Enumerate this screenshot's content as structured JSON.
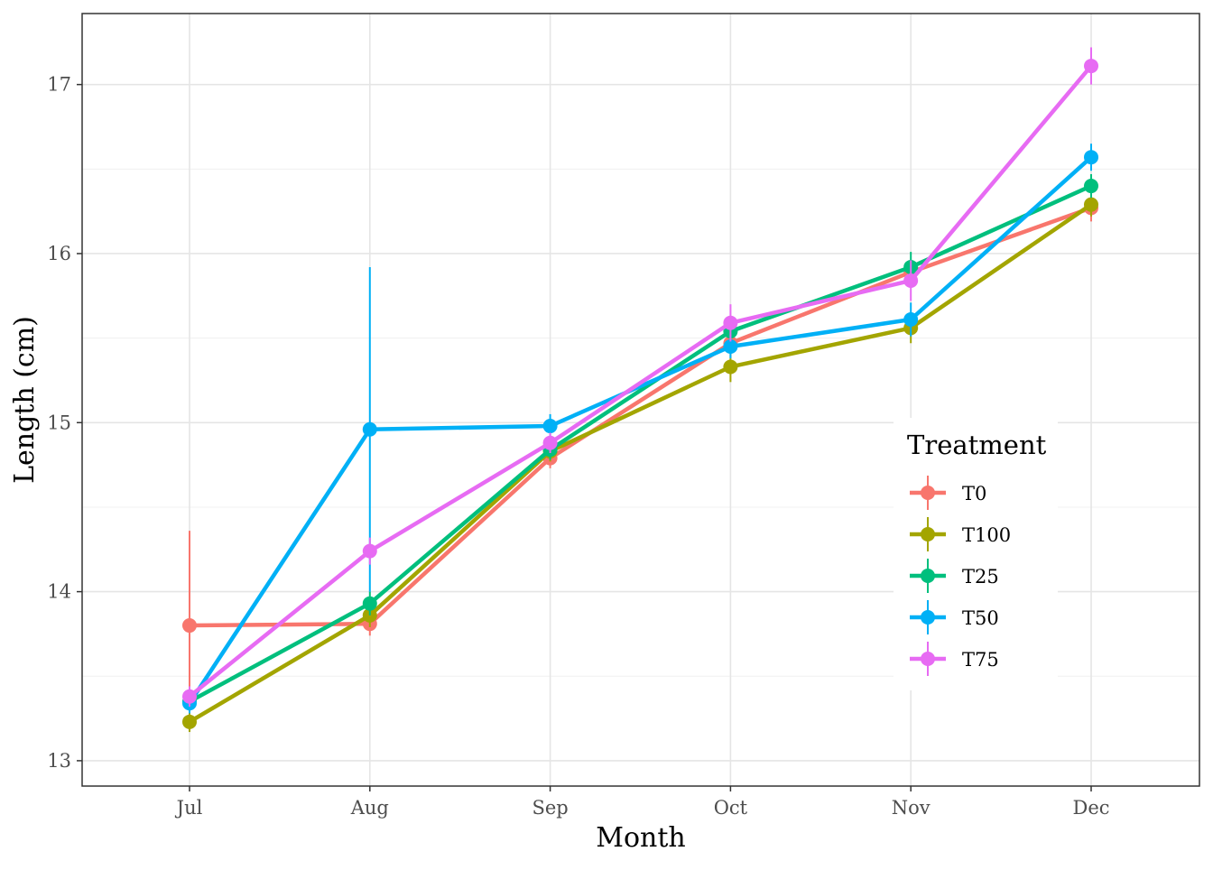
{
  "chart_data": {
    "type": "line",
    "xlabel": "Month",
    "ylabel": "Length (cm)",
    "categories": [
      "Jul",
      "Aug",
      "Sep",
      "Oct",
      "Nov",
      "Dec"
    ],
    "ylim": [
      12.85,
      17.42
    ],
    "yticks": [
      13,
      14,
      15,
      16,
      17
    ],
    "grid": true,
    "error_bars": true,
    "legend": {
      "title": "Treatment",
      "placement": "inside-right"
    },
    "series": [
      {
        "name": "T0",
        "color": "#F8766D",
        "values": [
          13.8,
          13.81,
          14.79,
          15.47,
          15.89,
          16.27
        ],
        "err_low": [
          13.25,
          13.74,
          14.73,
          15.41,
          15.83,
          16.19
        ],
        "err_high": [
          14.36,
          13.88,
          14.85,
          15.53,
          15.95,
          16.35
        ]
      },
      {
        "name": "T100",
        "color": "#A3A500",
        "values": [
          13.23,
          13.86,
          14.83,
          15.33,
          15.56,
          16.29
        ],
        "err_low": [
          13.17,
          13.79,
          14.77,
          15.24,
          15.47,
          16.22
        ],
        "err_high": [
          13.29,
          13.93,
          14.89,
          15.42,
          15.65,
          16.36
        ]
      },
      {
        "name": "T25",
        "color": "#00BF7D",
        "values": [
          13.35,
          13.93,
          14.84,
          15.54,
          15.92,
          16.4
        ],
        "err_low": [
          13.29,
          13.86,
          14.78,
          15.47,
          15.83,
          16.33
        ],
        "err_high": [
          13.41,
          14.0,
          14.9,
          15.61,
          16.01,
          16.47
        ]
      },
      {
        "name": "T50",
        "color": "#00B0F6",
        "values": [
          13.34,
          14.96,
          14.98,
          15.45,
          15.61,
          16.57
        ],
        "err_low": [
          13.28,
          14.0,
          14.91,
          15.38,
          15.51,
          16.49
        ],
        "err_high": [
          13.4,
          15.92,
          15.05,
          15.52,
          15.71,
          16.65
        ]
      },
      {
        "name": "T75",
        "color": "#E76BF3",
        "values": [
          13.38,
          14.24,
          14.88,
          15.59,
          15.84,
          17.11
        ],
        "err_low": [
          13.32,
          14.16,
          14.82,
          15.48,
          15.72,
          17.0
        ],
        "err_high": [
          13.44,
          14.32,
          14.94,
          15.7,
          15.96,
          17.22
        ]
      }
    ]
  }
}
